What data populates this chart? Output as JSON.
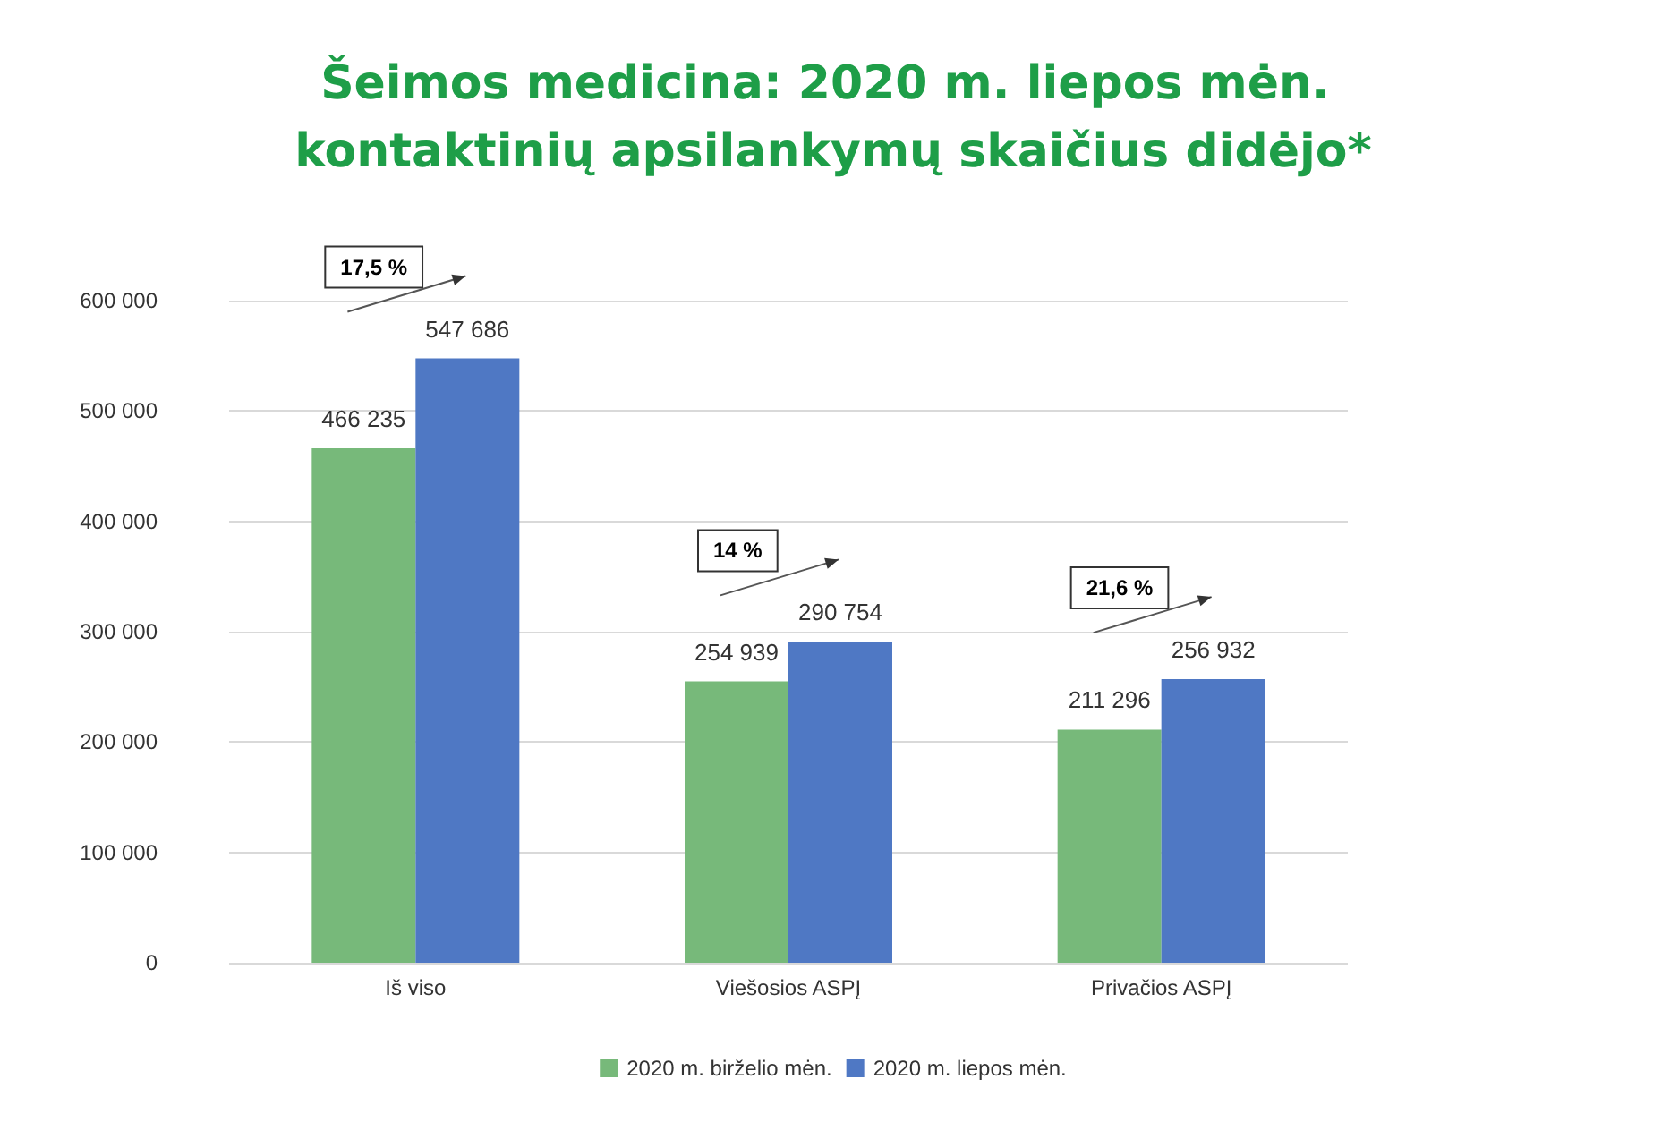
{
  "chart_data": {
    "type": "bar",
    "title": "Šeimos medicina: 2020 m. liepos mėn. kontaktinių apsilankymų skaičius didėjo*",
    "categories": [
      "Iš viso",
      "Viešosios ASPĮ",
      "Privačios ASPĮ"
    ],
    "series": [
      {
        "name": "2020 m. birželio mėn.",
        "color": "#77b97a",
        "values": [
          466235,
          254939,
          211296
        ],
        "value_labels": [
          "466 235",
          "254 939",
          "211 296"
        ]
      },
      {
        "name": "2020 m. liepos mėn.",
        "color": "#4f78c4",
        "values": [
          547686,
          290754,
          256932
        ],
        "value_labels": [
          "547 686",
          "290 754",
          "256 932"
        ]
      }
    ],
    "ylim": [
      0,
      600000
    ],
    "yticks": [
      {
        "value": 0,
        "label": "0"
      },
      {
        "value": 100000,
        "label": "100 000"
      },
      {
        "value": 200000,
        "label": "200 000"
      },
      {
        "value": 300000,
        "label": "300 000"
      },
      {
        "value": 400000,
        "label": "400 000"
      },
      {
        "value": 500000,
        "label": "500 000"
      },
      {
        "value": 600000,
        "label": "600 000"
      }
    ],
    "grid": "y",
    "legend": "bottom",
    "annotations": [
      "17,5 %",
      "14 %",
      "21,6 %"
    ]
  }
}
